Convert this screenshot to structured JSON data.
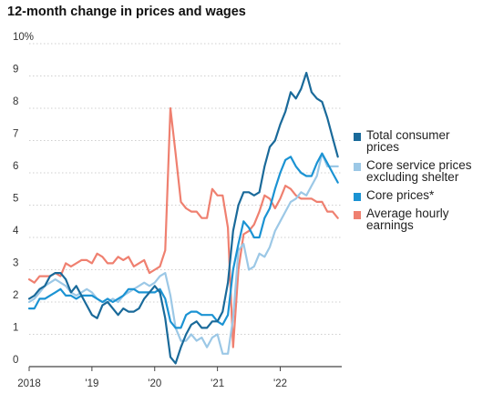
{
  "title": "12-month change in prices and wages",
  "chart_data": {
    "type": "line",
    "title": "12-month change in prices and wages",
    "xlabel": "",
    "ylabel": "",
    "ylim": [
      0,
      10
    ],
    "xlim": [
      2018.0,
      2022.98
    ],
    "y_ticks": [
      0,
      1,
      2,
      3,
      4,
      5,
      6,
      7,
      8,
      9,
      10
    ],
    "y_tick_labels": [
      "0",
      "1",
      "2",
      "3",
      "4",
      "5",
      "6",
      "7",
      "8",
      "9",
      "10%"
    ],
    "x_ticks": [
      2018,
      2019,
      2020,
      2021,
      2022
    ],
    "x_tick_labels": [
      "2018",
      "'19",
      "'20",
      "'21",
      "'22"
    ],
    "grid": "horizontal",
    "legend_position": "right",
    "series": [
      {
        "name": "Total consumer prices",
        "color": "#1a6a9a",
        "x": [
          2018.0,
          2018.083,
          2018.167,
          2018.25,
          2018.333,
          2018.417,
          2018.5,
          2018.583,
          2018.667,
          2018.75,
          2018.833,
          2018.917,
          2019.0,
          2019.083,
          2019.167,
          2019.25,
          2019.333,
          2019.417,
          2019.5,
          2019.583,
          2019.667,
          2019.75,
          2019.833,
          2019.917,
          2020.0,
          2020.083,
          2020.167,
          2020.25,
          2020.333,
          2020.417,
          2020.5,
          2020.583,
          2020.667,
          2020.75,
          2020.833,
          2020.917,
          2021.0,
          2021.083,
          2021.167,
          2021.25,
          2021.333,
          2021.417,
          2021.5,
          2021.583,
          2021.667,
          2021.75,
          2021.833,
          2021.917,
          2022.0,
          2022.083,
          2022.167,
          2022.25,
          2022.333,
          2022.417,
          2022.5,
          2022.583,
          2022.667,
          2022.75,
          2022.833,
          2022.917
        ],
        "values": [
          2.1,
          2.2,
          2.4,
          2.5,
          2.8,
          2.9,
          2.9,
          2.7,
          2.3,
          2.5,
          2.2,
          1.9,
          1.6,
          1.5,
          1.9,
          2.0,
          1.8,
          1.6,
          1.8,
          1.7,
          1.7,
          1.8,
          2.1,
          2.3,
          2.5,
          2.3,
          1.5,
          0.3,
          0.1,
          0.6,
          1.0,
          1.3,
          1.4,
          1.2,
          1.2,
          1.4,
          1.4,
          1.7,
          2.6,
          4.2,
          5.0,
          5.4,
          5.4,
          5.3,
          5.4,
          6.2,
          6.8,
          7.0,
          7.5,
          7.9,
          8.5,
          8.3,
          8.6,
          9.1,
          8.5,
          8.3,
          8.2,
          7.7,
          7.1,
          6.5
        ]
      },
      {
        "name": "Core service prices excluding shelter",
        "color": "#9cc8e6",
        "x": [
          2018.0,
          2018.083,
          2018.167,
          2018.25,
          2018.333,
          2018.417,
          2018.5,
          2018.583,
          2018.667,
          2018.75,
          2018.833,
          2018.917,
          2019.0,
          2019.083,
          2019.167,
          2019.25,
          2019.333,
          2019.417,
          2019.5,
          2019.583,
          2019.667,
          2019.75,
          2019.833,
          2019.917,
          2020.0,
          2020.083,
          2020.167,
          2020.25,
          2020.333,
          2020.417,
          2020.5,
          2020.583,
          2020.667,
          2020.75,
          2020.833,
          2020.917,
          2021.0,
          2021.083,
          2021.167,
          2021.25,
          2021.333,
          2021.417,
          2021.5,
          2021.583,
          2021.667,
          2021.75,
          2021.833,
          2021.917,
          2022.0,
          2022.083,
          2022.167,
          2022.25,
          2022.333,
          2022.417,
          2022.5,
          2022.583,
          2022.667,
          2022.75,
          2022.833,
          2022.917
        ],
        "values": [
          2.0,
          2.1,
          2.3,
          2.5,
          2.6,
          2.7,
          2.6,
          2.5,
          2.3,
          2.2,
          2.3,
          2.4,
          2.3,
          2.1,
          2.0,
          2.0,
          2.1,
          2.0,
          2.2,
          2.3,
          2.4,
          2.5,
          2.6,
          2.5,
          2.6,
          2.8,
          2.9,
          2.2,
          1.2,
          0.8,
          0.8,
          1.0,
          0.8,
          0.9,
          0.6,
          0.9,
          1.0,
          0.4,
          0.4,
          1.5,
          3.6,
          3.8,
          3.0,
          3.1,
          3.5,
          3.4,
          3.7,
          4.2,
          4.5,
          4.8,
          5.1,
          5.2,
          5.4,
          5.3,
          5.6,
          5.9,
          6.6,
          6.2,
          6.2,
          6.2
        ]
      },
      {
        "name": "Core prices*",
        "color": "#1b93d3",
        "x": [
          2018.0,
          2018.083,
          2018.167,
          2018.25,
          2018.333,
          2018.417,
          2018.5,
          2018.583,
          2018.667,
          2018.75,
          2018.833,
          2018.917,
          2019.0,
          2019.083,
          2019.167,
          2019.25,
          2019.333,
          2019.417,
          2019.5,
          2019.583,
          2019.667,
          2019.75,
          2019.833,
          2019.917,
          2020.0,
          2020.083,
          2020.167,
          2020.25,
          2020.333,
          2020.417,
          2020.5,
          2020.583,
          2020.667,
          2020.75,
          2020.833,
          2020.917,
          2021.0,
          2021.083,
          2021.167,
          2021.25,
          2021.333,
          2021.417,
          2021.5,
          2021.583,
          2021.667,
          2021.75,
          2021.833,
          2021.917,
          2022.0,
          2022.083,
          2022.167,
          2022.25,
          2022.333,
          2022.417,
          2022.5,
          2022.583,
          2022.667,
          2022.75,
          2022.833,
          2022.917
        ],
        "values": [
          1.8,
          1.8,
          2.1,
          2.1,
          2.2,
          2.3,
          2.4,
          2.2,
          2.2,
          2.1,
          2.2,
          2.2,
          2.2,
          2.1,
          2.0,
          2.1,
          2.0,
          2.1,
          2.2,
          2.4,
          2.4,
          2.3,
          2.3,
          2.3,
          2.3,
          2.4,
          2.1,
          1.4,
          1.2,
          1.2,
          1.6,
          1.7,
          1.7,
          1.6,
          1.6,
          1.6,
          1.4,
          1.3,
          1.6,
          3.0,
          3.8,
          4.5,
          4.3,
          4.0,
          4.0,
          4.6,
          4.9,
          5.5,
          6.0,
          6.4,
          6.5,
          6.2,
          6.0,
          5.9,
          5.9,
          6.3,
          6.6,
          6.3,
          6.0,
          5.7
        ]
      },
      {
        "name": "Average hourly earnings",
        "color": "#ef8070",
        "x": [
          2018.0,
          2018.083,
          2018.167,
          2018.25,
          2018.333,
          2018.417,
          2018.5,
          2018.583,
          2018.667,
          2018.75,
          2018.833,
          2018.917,
          2019.0,
          2019.083,
          2019.167,
          2019.25,
          2019.333,
          2019.417,
          2019.5,
          2019.583,
          2019.667,
          2019.75,
          2019.833,
          2019.917,
          2020.0,
          2020.083,
          2020.167,
          2020.25,
          2020.333,
          2020.417,
          2020.5,
          2020.583,
          2020.667,
          2020.75,
          2020.833,
          2020.917,
          2021.0,
          2021.083,
          2021.167,
          2021.25,
          2021.333,
          2021.417,
          2021.5,
          2021.583,
          2021.667,
          2021.75,
          2021.833,
          2021.917,
          2022.0,
          2022.083,
          2022.167,
          2022.25,
          2022.333,
          2022.417,
          2022.5,
          2022.583,
          2022.667,
          2022.75,
          2022.833,
          2022.917
        ],
        "values": [
          2.7,
          2.6,
          2.8,
          2.8,
          2.8,
          2.9,
          2.8,
          3.2,
          3.1,
          3.2,
          3.3,
          3.3,
          3.2,
          3.5,
          3.4,
          3.2,
          3.2,
          3.4,
          3.3,
          3.4,
          3.1,
          3.2,
          3.3,
          2.9,
          3.0,
          3.1,
          3.6,
          8.0,
          6.6,
          5.1,
          4.9,
          4.8,
          4.8,
          4.6,
          4.6,
          5.5,
          5.3,
          5.3,
          4.3,
          0.6,
          3.0,
          4.1,
          4.2,
          4.4,
          4.8,
          5.3,
          5.2,
          4.9,
          5.2,
          5.6,
          5.5,
          5.3,
          5.2,
          5.2,
          5.2,
          5.1,
          5.1,
          4.8,
          4.8,
          4.6
        ]
      }
    ]
  }
}
